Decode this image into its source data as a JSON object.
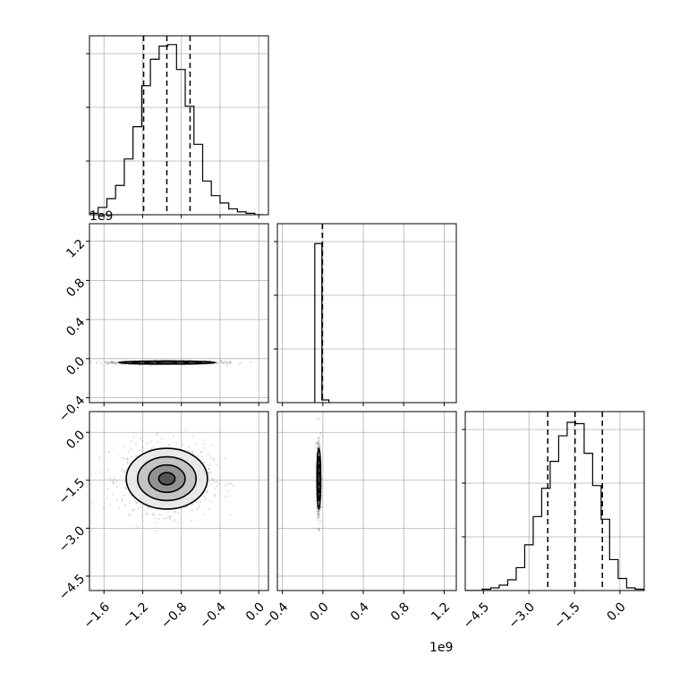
{
  "figure": {
    "type": "corner-plot",
    "offset_labels": [
      "1e9",
      "1e9"
    ]
  },
  "colors": {
    "grid": "#b0b0b0",
    "line": "#000000",
    "scatter": "#555555",
    "frame": "#000000"
  },
  "chart_data": [
    {
      "id": "hist_p0",
      "type": "histogram",
      "xlim": [
        -1.75,
        0.1
      ],
      "x_ticks": [
        -1.6,
        -1.2,
        -0.8,
        -0.4,
        0.0
      ],
      "bin_edges": [
        -1.75,
        -1.66,
        -1.57,
        -1.48,
        -1.39,
        -1.3,
        -1.21,
        -1.12,
        -1.03,
        -0.94,
        -0.85,
        -0.76,
        -0.67,
        -0.58,
        -0.49,
        -0.4,
        -0.31,
        -0.22,
        -0.13,
        -0.04,
        0.05
      ],
      "counts": [
        1,
        5,
        11,
        20,
        38,
        60,
        88,
        106,
        115,
        116,
        99,
        74,
        48,
        23,
        13,
        8,
        4,
        2,
        1,
        0
      ],
      "ylim": [
        0,
        122
      ],
      "quantiles": [
        -1.19,
        -0.95,
        -0.71
      ],
      "grid": true
    },
    {
      "id": "scatter_p0_p1",
      "type": "contour-scatter",
      "xlim": [
        -1.75,
        0.1
      ],
      "ylim": [
        -0.45,
        1.38
      ],
      "y_ticks": [
        -0.4,
        0.0,
        0.4,
        0.8,
        1.2
      ],
      "center": [
        -0.95,
        -0.04
      ],
      "spread": [
        0.5,
        0.015
      ],
      "grid": true
    },
    {
      "id": "hist_p1",
      "type": "histogram",
      "xlim": [
        -0.45,
        1.32
      ],
      "bin_edges": [
        -0.08,
        -0.01,
        0.06
      ],
      "counts": [
        120,
        2
      ],
      "ylim": [
        0,
        135
      ],
      "quantiles": [
        -0.005,
        -0.005,
        -0.005
      ],
      "grid": true
    },
    {
      "id": "scatter_p0_p2",
      "type": "contour-scatter",
      "xlim": [
        -1.75,
        0.1
      ],
      "ylim": [
        -4.95,
        0.65
      ],
      "y_ticks": [
        -4.5,
        -3.0,
        -1.5,
        0.0
      ],
      "center": [
        -0.95,
        -1.45
      ],
      "spread": [
        0.42,
        0.95
      ],
      "grid": true
    },
    {
      "id": "scatter_p1_p2",
      "type": "contour-scatter",
      "xlim": [
        -0.45,
        1.32
      ],
      "x_ticks": [
        -0.4,
        0.0,
        0.4,
        0.8,
        1.2
      ],
      "ylim": [
        -4.95,
        0.65
      ],
      "center": [
        -0.04,
        -1.45
      ],
      "spread": [
        0.018,
        0.95
      ],
      "grid": true
    },
    {
      "id": "hist_p2",
      "type": "histogram",
      "xlim": [
        -5.1,
        0.8
      ],
      "x_ticks": [
        -4.5,
        -3.0,
        -1.5,
        0.0
      ],
      "bin_edges": [
        -5.1,
        -4.82,
        -4.54,
        -4.26,
        -3.98,
        -3.7,
        -3.42,
        -3.14,
        -2.86,
        -2.58,
        -2.3,
        -2.02,
        -1.74,
        -1.46,
        -1.18,
        -0.9,
        -0.62,
        -0.34,
        -0.06,
        0.22,
        0.5,
        0.78
      ],
      "counts": [
        0,
        0,
        1,
        2,
        4,
        8,
        17,
        34,
        55,
        76,
        96,
        115,
        125,
        124,
        102,
        78,
        53,
        23,
        9,
        2,
        1
      ],
      "ylim": [
        0,
        133
      ],
      "quantiles": [
        -2.38,
        -1.48,
        -0.58
      ],
      "grid": true
    }
  ]
}
